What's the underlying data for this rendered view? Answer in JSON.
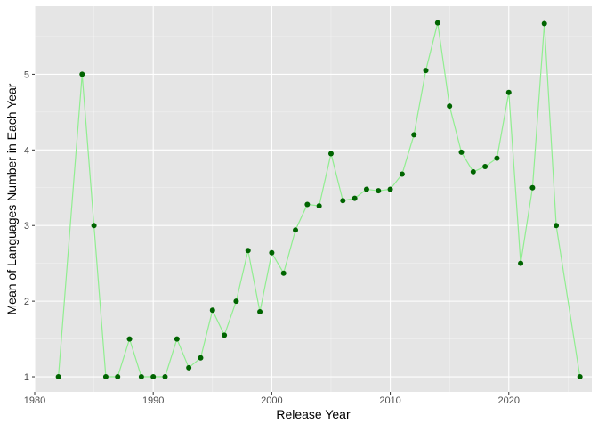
{
  "chart_data": {
    "type": "line",
    "title": "",
    "xlabel": "Release Year",
    "ylabel": "Mean of Languages Number in Each Year",
    "xlim": [
      1980.0,
      2027.0
    ],
    "ylim": [
      0.8,
      5.9
    ],
    "x_ticks": [
      1980,
      1990,
      2000,
      2010,
      2020
    ],
    "y_ticks": [
      1,
      2,
      3,
      4,
      5
    ],
    "grid": true,
    "legend": "none",
    "colors": {
      "panel_background": "#e5e5e5",
      "grid": "#ffffff",
      "line": "#90ee90",
      "point": "#006400",
      "axis_text": "#4d4d4d",
      "axis_title": "#000000"
    },
    "series": [
      {
        "x": [
          1982,
          1984,
          1985,
          1986,
          1987,
          1988,
          1989,
          1990,
          1991,
          1992,
          1993,
          1994,
          1995,
          1996,
          1997,
          1998,
          1999,
          2000,
          2001,
          2002,
          2003,
          2004,
          2005,
          2006,
          2007,
          2008,
          2009,
          2010,
          2011,
          2012,
          2013,
          2014,
          2015,
          2016,
          2017,
          2018,
          2019,
          2020,
          2021,
          2022,
          2023,
          2024,
          2026
        ],
        "y": [
          1.0,
          5.0,
          3.0,
          1.0,
          1.0,
          1.5,
          1.0,
          1.0,
          1.0,
          1.5,
          1.12,
          1.25,
          1.88,
          1.55,
          2.0,
          2.67,
          1.86,
          2.64,
          2.37,
          2.94,
          3.28,
          3.26,
          3.95,
          3.33,
          3.36,
          3.48,
          3.46,
          3.48,
          3.68,
          4.2,
          5.05,
          5.68,
          4.58,
          3.97,
          3.71,
          3.78,
          3.89,
          4.76,
          2.5,
          3.5,
          5.67,
          3.0,
          1.0
        ]
      }
    ]
  }
}
